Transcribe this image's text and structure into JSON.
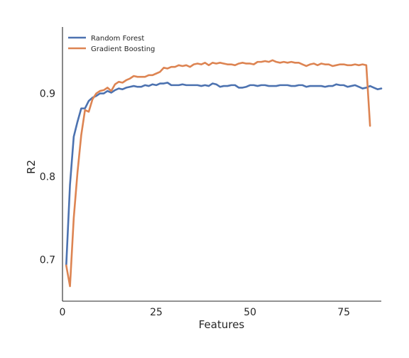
{
  "chart_data": {
    "type": "line",
    "title": "",
    "xlabel": "Features",
    "ylabel": "R2",
    "xlim": [
      0,
      85
    ],
    "ylim": [
      0.65,
      0.98
    ],
    "xticks": [
      0,
      25,
      50,
      75
    ],
    "xtick_labels": [
      "0",
      "25",
      "50",
      "75"
    ],
    "yticks": [
      0.7,
      0.8,
      0.9
    ],
    "ytick_labels": [
      "0.7",
      "0.8",
      "0.9"
    ],
    "grid": false,
    "legend_position": "top-left",
    "series": [
      {
        "name": "Random Forest",
        "color": "#4c72b0",
        "x": [
          1,
          2,
          3,
          4,
          5,
          6,
          7,
          8,
          9,
          10,
          11,
          12,
          13,
          14,
          15,
          16,
          17,
          18,
          19,
          20,
          21,
          22,
          23,
          24,
          25,
          26,
          27,
          28,
          29,
          30,
          31,
          32,
          33,
          34,
          35,
          36,
          37,
          38,
          39,
          40,
          41,
          42,
          43,
          44,
          45,
          46,
          47,
          48,
          49,
          50,
          51,
          52,
          53,
          54,
          55,
          56,
          57,
          58,
          59,
          60,
          61,
          62,
          63,
          64,
          65,
          66,
          67,
          68,
          69,
          70,
          71,
          72,
          73,
          74,
          75,
          76,
          77,
          78,
          79,
          80,
          81,
          82,
          83,
          84,
          85
        ],
        "values": [
          0.693,
          0.79,
          0.848,
          0.866,
          0.882,
          0.882,
          0.891,
          0.895,
          0.897,
          0.9,
          0.9,
          0.903,
          0.901,
          0.904,
          0.906,
          0.905,
          0.907,
          0.908,
          0.909,
          0.908,
          0.908,
          0.91,
          0.909,
          0.911,
          0.91,
          0.912,
          0.912,
          0.913,
          0.91,
          0.91,
          0.91,
          0.911,
          0.91,
          0.91,
          0.91,
          0.91,
          0.909,
          0.91,
          0.909,
          0.912,
          0.911,
          0.908,
          0.909,
          0.909,
          0.91,
          0.91,
          0.907,
          0.907,
          0.908,
          0.91,
          0.91,
          0.909,
          0.91,
          0.91,
          0.909,
          0.909,
          0.909,
          0.91,
          0.91,
          0.91,
          0.909,
          0.909,
          0.91,
          0.91,
          0.908,
          0.909,
          0.909,
          0.909,
          0.909,
          0.908,
          0.909,
          0.909,
          0.911,
          0.91,
          0.91,
          0.908,
          0.909,
          0.91,
          0.908,
          0.906,
          0.907,
          0.909,
          0.907,
          0.905,
          0.906
        ]
      },
      {
        "name": "Gradient Boosting",
        "color": "#dd8452",
        "x": [
          1,
          2,
          3,
          4,
          5,
          6,
          7,
          8,
          9,
          10,
          11,
          12,
          13,
          14,
          15,
          16,
          17,
          18,
          19,
          20,
          21,
          22,
          23,
          24,
          25,
          26,
          27,
          28,
          29,
          30,
          31,
          32,
          33,
          34,
          35,
          36,
          37,
          38,
          39,
          40,
          41,
          42,
          43,
          44,
          45,
          46,
          47,
          48,
          49,
          50,
          51,
          52,
          53,
          54,
          55,
          56,
          57,
          58,
          59,
          60,
          61,
          62,
          63,
          64,
          65,
          66,
          67,
          68,
          69,
          70,
          71,
          72,
          73,
          74,
          75,
          76,
          77,
          78,
          79,
          80,
          81,
          82
        ],
        "values": [
          0.693,
          0.668,
          0.75,
          0.805,
          0.85,
          0.88,
          0.878,
          0.893,
          0.9,
          0.903,
          0.904,
          0.907,
          0.903,
          0.911,
          0.914,
          0.913,
          0.916,
          0.918,
          0.921,
          0.92,
          0.92,
          0.92,
          0.922,
          0.922,
          0.924,
          0.926,
          0.931,
          0.93,
          0.932,
          0.932,
          0.934,
          0.933,
          0.934,
          0.932,
          0.935,
          0.936,
          0.935,
          0.937,
          0.934,
          0.937,
          0.936,
          0.937,
          0.936,
          0.935,
          0.935,
          0.934,
          0.936,
          0.937,
          0.936,
          0.936,
          0.935,
          0.938,
          0.938,
          0.939,
          0.938,
          0.94,
          0.938,
          0.937,
          0.938,
          0.937,
          0.938,
          0.937,
          0.937,
          0.935,
          0.933,
          0.935,
          0.936,
          0.934,
          0.936,
          0.935,
          0.935,
          0.933,
          0.934,
          0.935,
          0.935,
          0.934,
          0.934,
          0.935,
          0.934,
          0.935,
          0.934,
          0.861
        ]
      }
    ]
  }
}
